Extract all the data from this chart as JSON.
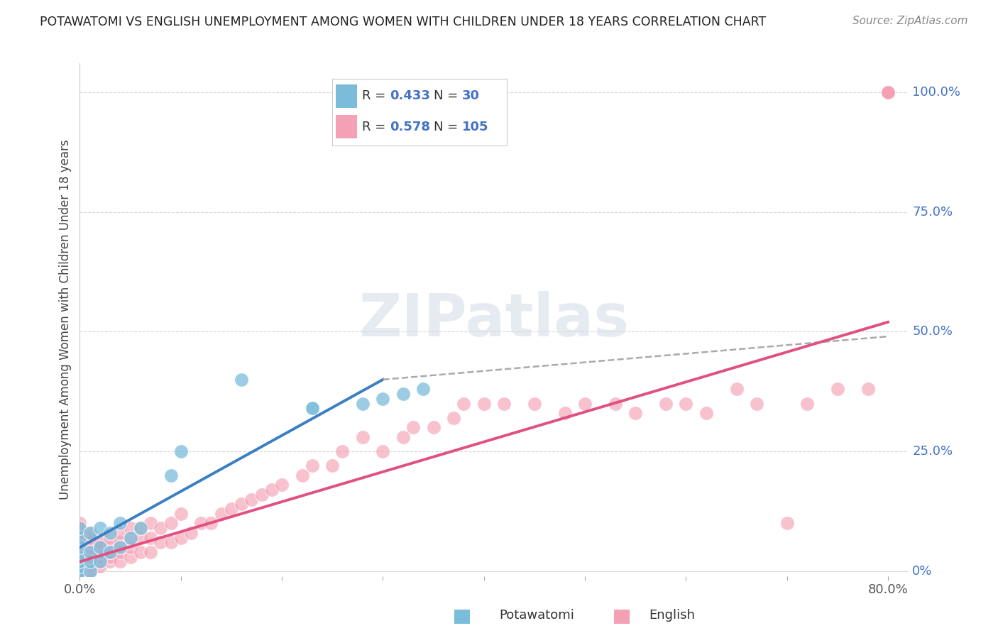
{
  "title": "POTAWATOMI VS ENGLISH UNEMPLOYMENT AMONG WOMEN WITH CHILDREN UNDER 18 YEARS CORRELATION CHART",
  "source": "Source: ZipAtlas.com",
  "ylabel": "Unemployment Among Women with Children Under 18 years",
  "xlim": [
    0.0,
    0.82
  ],
  "ylim": [
    -0.01,
    1.06
  ],
  "potawatomi_color": "#7bbcdb",
  "english_color": "#f4a0b5",
  "potawatomi_line_color": "#3a7fc1",
  "english_line_color": "#e05080",
  "dash_color": "#aaaaaa",
  "watermark_color": "#cdd9e5",
  "value_color": "#4472c4",
  "background_color": "#ffffff",
  "grid_color": "#d8d8d8",
  "potawatomi_x": [
    0.0,
    0.0,
    0.0,
    0.0,
    0.0,
    0.0,
    0.0,
    0.0,
    0.01,
    0.01,
    0.01,
    0.01,
    0.02,
    0.02,
    0.02,
    0.03,
    0.03,
    0.04,
    0.04,
    0.05,
    0.06,
    0.09,
    0.1,
    0.16,
    0.23,
    0.23,
    0.28,
    0.3,
    0.32,
    0.34
  ],
  "potawatomi_y": [
    0.0,
    0.0,
    0.01,
    0.02,
    0.03,
    0.05,
    0.07,
    0.09,
    0.0,
    0.02,
    0.04,
    0.08,
    0.02,
    0.05,
    0.09,
    0.04,
    0.08,
    0.05,
    0.1,
    0.07,
    0.09,
    0.2,
    0.25,
    0.4,
    0.34,
    0.34,
    0.35,
    0.36,
    0.37,
    0.38
  ],
  "english_x": [
    0.0,
    0.0,
    0.0,
    0.0,
    0.0,
    0.0,
    0.0,
    0.0,
    0.0,
    0.0,
    0.0,
    0.0,
    0.0,
    0.0,
    0.0,
    0.0,
    0.01,
    0.01,
    0.01,
    0.01,
    0.01,
    0.01,
    0.01,
    0.01,
    0.01,
    0.01,
    0.02,
    0.02,
    0.02,
    0.02,
    0.02,
    0.02,
    0.03,
    0.03,
    0.03,
    0.03,
    0.03,
    0.04,
    0.04,
    0.04,
    0.04,
    0.05,
    0.05,
    0.05,
    0.05,
    0.06,
    0.06,
    0.06,
    0.07,
    0.07,
    0.07,
    0.08,
    0.08,
    0.09,
    0.09,
    0.1,
    0.1,
    0.11,
    0.12,
    0.13,
    0.14,
    0.15,
    0.16,
    0.17,
    0.18,
    0.19,
    0.2,
    0.22,
    0.23,
    0.25,
    0.26,
    0.28,
    0.3,
    0.32,
    0.33,
    0.35,
    0.37,
    0.38,
    0.4,
    0.42,
    0.45,
    0.48,
    0.5,
    0.53,
    0.55,
    0.58,
    0.6,
    0.62,
    0.65,
    0.67,
    0.7,
    0.72,
    0.75,
    0.78,
    0.8,
    0.8,
    0.8,
    0.8,
    0.8,
    0.8,
    0.8,
    0.8,
    0.8,
    0.8,
    0.8,
    0.8,
    0.8
  ],
  "english_y": [
    0.0,
    0.0,
    0.0,
    0.0,
    0.0,
    0.0,
    0.01,
    0.02,
    0.03,
    0.04,
    0.05,
    0.06,
    0.07,
    0.08,
    0.09,
    0.1,
    0.0,
    0.0,
    0.01,
    0.02,
    0.03,
    0.04,
    0.05,
    0.06,
    0.07,
    0.08,
    0.01,
    0.02,
    0.03,
    0.04,
    0.05,
    0.06,
    0.02,
    0.03,
    0.04,
    0.05,
    0.07,
    0.02,
    0.04,
    0.06,
    0.08,
    0.03,
    0.05,
    0.07,
    0.09,
    0.04,
    0.07,
    0.09,
    0.04,
    0.07,
    0.1,
    0.06,
    0.09,
    0.06,
    0.1,
    0.07,
    0.12,
    0.08,
    0.1,
    0.1,
    0.12,
    0.13,
    0.14,
    0.15,
    0.16,
    0.17,
    0.18,
    0.2,
    0.22,
    0.22,
    0.25,
    0.28,
    0.25,
    0.28,
    0.3,
    0.3,
    0.32,
    0.35,
    0.35,
    0.35,
    0.35,
    0.33,
    0.35,
    0.35,
    0.33,
    0.35,
    0.35,
    0.33,
    0.38,
    0.35,
    0.1,
    0.35,
    0.38,
    0.38,
    1.0,
    1.0,
    1.0,
    1.0,
    1.0,
    1.0,
    1.0,
    1.0,
    1.0,
    1.0,
    1.0,
    1.0,
    1.0
  ],
  "pot_line_x0": 0.0,
  "pot_line_x1": 0.3,
  "pot_line_y0": 0.05,
  "pot_line_y1": 0.4,
  "dash_line_x0": 0.3,
  "dash_line_x1": 0.8,
  "dash_line_y0": 0.4,
  "dash_line_y1": 0.49,
  "eng_line_x0": 0.0,
  "eng_line_x1": 0.8,
  "eng_line_y0": 0.02,
  "eng_line_y1": 0.52
}
